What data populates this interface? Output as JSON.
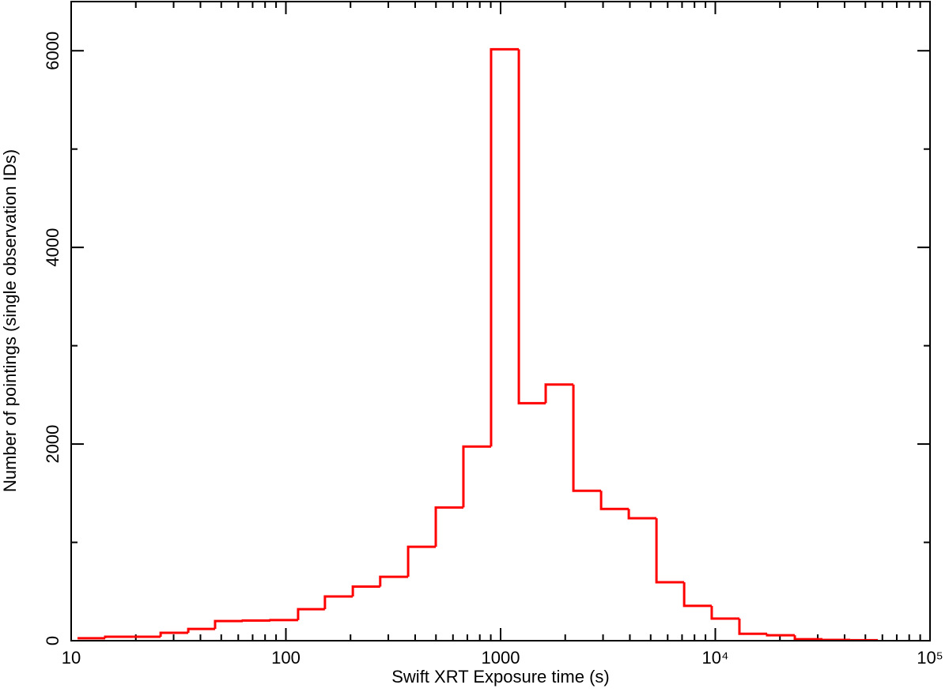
{
  "chart_data": {
    "type": "histogram",
    "xlabel": "Swift XRT Exposure time (s)",
    "ylabel": "Number of pointings (single observation IDs)",
    "xlog": true,
    "color": "#ff0000",
    "xlim": [
      10,
      100000
    ],
    "ylim": [
      0,
      6500
    ],
    "xticks": [
      10,
      100,
      1000,
      {
        "value": 10000,
        "label": "10⁴"
      },
      {
        "value": 100000,
        "label": "10⁵"
      }
    ],
    "yticks": [
      0,
      2000,
      4000,
      6000
    ],
    "bins": [
      10.7,
      14.4,
      19.4,
      26.1,
      35.1,
      46.8,
      63,
      84.7,
      114,
      152,
      205,
      275,
      371,
      499,
      671,
      903,
      1216,
      1622,
      2183,
      2938,
      3954,
      5321,
      7161,
      9623,
      12950,
      17430,
      23460,
      31570,
      42490,
      57180
    ],
    "values": [
      25,
      40,
      40,
      80,
      120,
      200,
      205,
      210,
      320,
      450,
      550,
      650,
      955,
      1355,
      1975,
      6015,
      2415,
      2605,
      1525,
      1340,
      1245,
      595,
      355,
      225,
      70,
      55,
      15,
      8,
      5
    ]
  }
}
